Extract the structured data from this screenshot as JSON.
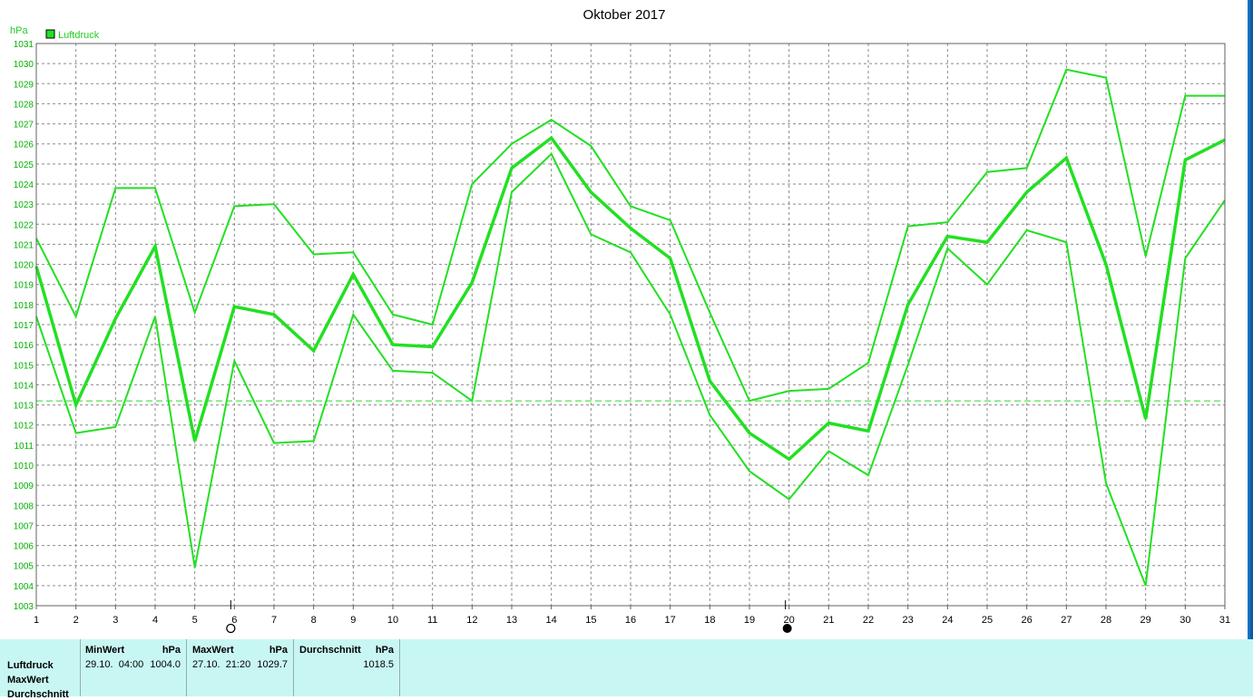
{
  "chart_data": {
    "type": "line",
    "title": "Oktober 2017",
    "unit": "hPa",
    "legend": [
      {
        "name": "Luftdruck",
        "color": "#22e022"
      }
    ],
    "legend_position": "top-left",
    "ylim": [
      1003,
      1031
    ],
    "yticks": [
      1003,
      1004,
      1005,
      1006,
      1007,
      1008,
      1009,
      1010,
      1011,
      1012,
      1013,
      1014,
      1015,
      1016,
      1017,
      1018,
      1019,
      1020,
      1021,
      1022,
      1023,
      1024,
      1025,
      1026,
      1027,
      1028,
      1029,
      1030,
      1031
    ],
    "x": [
      1,
      2,
      3,
      4,
      5,
      6,
      7,
      8,
      9,
      10,
      11,
      12,
      13,
      14,
      15,
      16,
      17,
      18,
      19,
      20,
      21,
      22,
      23,
      24,
      25,
      26,
      27,
      28,
      29,
      30,
      31
    ],
    "grid": true,
    "series": [
      {
        "role": "max",
        "values": [
          1021.3,
          1017.4,
          1023.8,
          1023.8,
          1017.6,
          1022.9,
          1023.0,
          1020.5,
          1020.6,
          1017.5,
          1017.0,
          1024.0,
          1026.0,
          1027.2,
          1025.9,
          1022.9,
          1022.2,
          1017.6,
          1013.2,
          1013.7,
          1013.8,
          1015.1,
          1021.9,
          1022.1,
          1024.6,
          1024.8,
          1029.7,
          1029.3,
          1020.4,
          1028.4,
          1028.4
        ]
      },
      {
        "role": "average",
        "values": [
          1019.9,
          1013.0,
          1017.3,
          1020.9,
          1011.2,
          1017.9,
          1017.5,
          1015.7,
          1019.5,
          1016.0,
          1015.9,
          1019.1,
          1024.8,
          1026.3,
          1023.6,
          1021.8,
          1020.3,
          1014.2,
          1011.6,
          1010.3,
          1012.1,
          1011.7,
          1018.0,
          1021.4,
          1021.1,
          1023.6,
          1025.3,
          1020.0,
          1012.3,
          1025.2,
          1026.2
        ]
      },
      {
        "role": "min",
        "values": [
          1017.4,
          1011.6,
          1011.9,
          1017.4,
          1004.9,
          1015.2,
          1011.1,
          1011.2,
          1017.5,
          1014.7,
          1014.6,
          1013.2,
          1023.6,
          1025.5,
          1021.5,
          1020.6,
          1017.5,
          1012.5,
          1009.7,
          1008.3,
          1010.7,
          1009.5,
          1015.0,
          1020.8,
          1019.0,
          1021.7,
          1021.1,
          1009.1,
          1004.0,
          1020.3,
          1023.2
        ]
      }
    ],
    "mean_reference": 1013.2,
    "moon_phases": [
      {
        "day": 6,
        "symbol": "○",
        "phase": "full-moon"
      },
      {
        "day": 20,
        "symbol": "●",
        "phase": "new-moon"
      }
    ]
  },
  "stats_table": {
    "row_labels": [
      "Luftdruck",
      "MaxWert",
      "Durchschnitt"
    ],
    "min": {
      "header": "MinWert",
      "unit": "hPa",
      "time": "29.10.  04:00",
      "value": "1004.0"
    },
    "max": {
      "header": "MaxWert",
      "unit": "hPa",
      "time": "27.10.  21:20",
      "value": "1029.7"
    },
    "avg": {
      "header": "Durchschnitt",
      "unit": "hPa",
      "value": "1018.5"
    }
  }
}
